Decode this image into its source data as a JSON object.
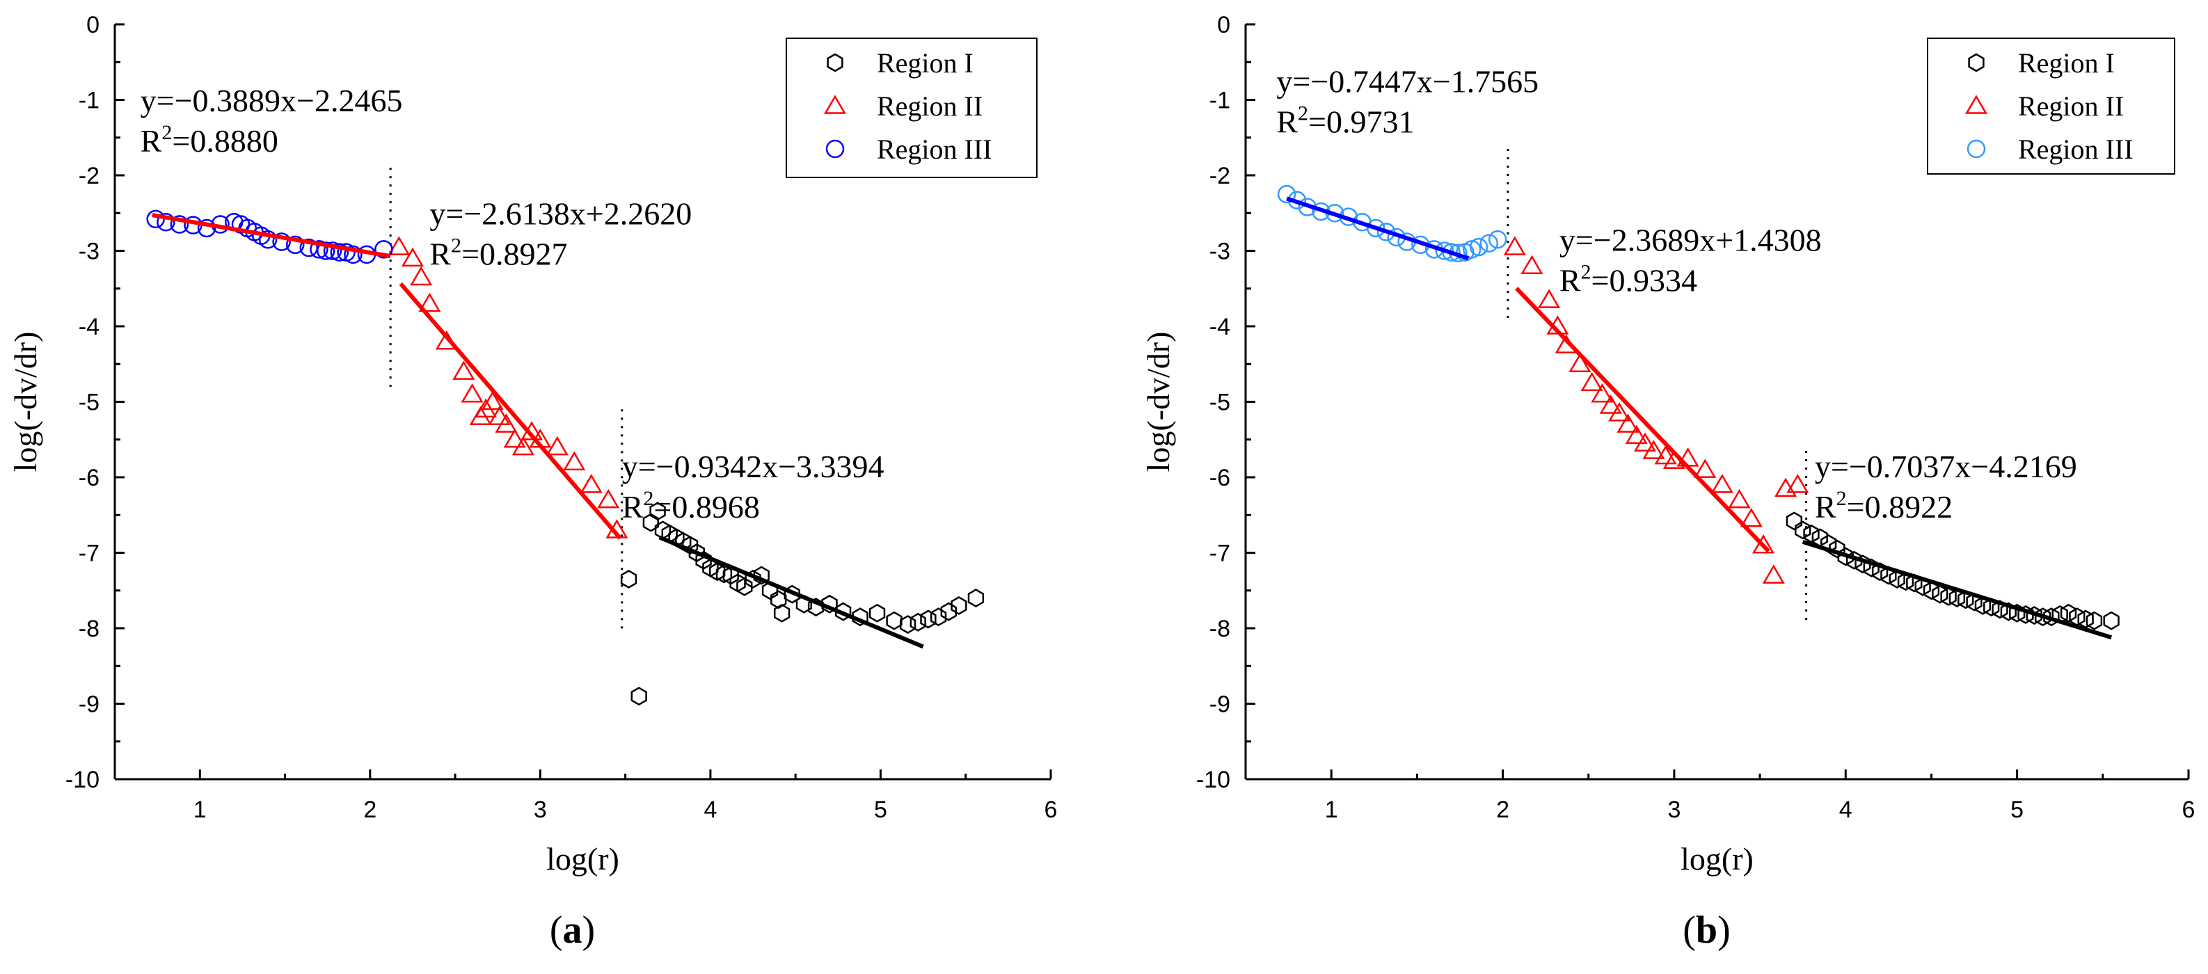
{
  "chart_data": [
    {
      "type": "scatter",
      "panel_label": "a",
      "xlabel": "log(r)",
      "ylabel": "log(-dv/dr)",
      "xlim": [
        0.5,
        6
      ],
      "ylim": [
        -10,
        0
      ],
      "xticks": [
        1,
        2,
        3,
        4,
        5,
        6
      ],
      "yticks": [
        0,
        -1,
        -2,
        -3,
        -4,
        -5,
        -6,
        -7,
        -8,
        -9,
        -10
      ],
      "grid": false,
      "legend_position": "top-right",
      "series": [
        {
          "name": "Region I",
          "marker": "hexagon",
          "color": "#000000",
          "x": [
            3.52,
            3.58,
            3.65,
            3.69,
            3.72,
            3.76,
            3.8,
            3.84,
            3.88,
            3.92,
            3.96,
            4.0,
            4.04,
            4.08,
            4.12,
            4.16,
            4.2,
            4.25,
            4.3,
            4.35,
            4.4,
            4.42,
            4.48,
            4.55,
            4.62,
            4.7,
            4.78,
            4.88,
            4.98,
            5.08,
            5.16,
            5.22,
            5.28,
            5.34,
            5.4,
            5.46,
            5.56
          ],
          "y": [
            -7.35,
            -8.9,
            -6.6,
            -6.45,
            -6.7,
            -6.75,
            -6.8,
            -6.85,
            -6.9,
            -7.0,
            -7.1,
            -7.2,
            -7.25,
            -7.28,
            -7.3,
            -7.4,
            -7.45,
            -7.35,
            -7.3,
            -7.5,
            -7.62,
            -7.8,
            -7.55,
            -7.68,
            -7.72,
            -7.68,
            -7.78,
            -7.85,
            -7.8,
            -7.9,
            -7.95,
            -7.92,
            -7.88,
            -7.85,
            -7.78,
            -7.7,
            -7.6
          ]
        },
        {
          "name": "Region II",
          "marker": "triangle",
          "color": "#ff0000",
          "x": [
            2.17,
            2.25,
            2.3,
            2.35,
            2.45,
            2.55,
            2.6,
            2.65,
            2.68,
            2.72,
            2.76,
            2.8,
            2.85,
            2.9,
            2.95,
            3.0,
            3.1,
            3.2,
            3.3,
            3.4,
            3.45
          ],
          "y": [
            -2.95,
            -3.1,
            -3.35,
            -3.7,
            -4.2,
            -4.6,
            -4.9,
            -5.2,
            -5.1,
            -5.0,
            -5.2,
            -5.3,
            -5.5,
            -5.6,
            -5.4,
            -5.5,
            -5.6,
            -5.8,
            -6.1,
            -6.3,
            -6.7
          ]
        },
        {
          "name": "Region III",
          "marker": "circle",
          "color": "#0000ff",
          "x": [
            0.74,
            0.8,
            0.88,
            0.96,
            1.04,
            1.12,
            1.2,
            1.24,
            1.28,
            1.32,
            1.36,
            1.4,
            1.48,
            1.56,
            1.64,
            1.7,
            1.74,
            1.78,
            1.82,
            1.86,
            1.9,
            1.98,
            2.08
          ],
          "y": [
            -2.58,
            -2.62,
            -2.65,
            -2.66,
            -2.7,
            -2.65,
            -2.62,
            -2.65,
            -2.7,
            -2.75,
            -2.8,
            -2.85,
            -2.88,
            -2.92,
            -2.96,
            -2.98,
            -3.0,
            -3.0,
            -3.02,
            -3.02,
            -3.05,
            -3.05,
            -2.98
          ]
        }
      ],
      "fit_lines": [
        {
          "series": "Region III",
          "color": "#ff0000",
          "x": [
            0.72,
            2.12
          ],
          "y": [
            -2.5265,
            -3.071
          ]
        },
        {
          "series": "Region II",
          "color": "#ff0000",
          "x": [
            2.18,
            3.47
          ],
          "y": [
            -3.4361,
            -6.808
          ]
        },
        {
          "series": "Region I",
          "color": "#000000",
          "x": [
            3.7,
            5.25
          ],
          "y": [
            -6.7959,
            -8.244
          ]
        }
      ],
      "dividers": [
        {
          "x": 2.12,
          "y": [
            -1.9,
            -4.85
          ]
        },
        {
          "x": 3.48,
          "y": [
            -5.1,
            -8.05
          ]
        }
      ],
      "annotations": [
        {
          "equation": "y=−0.3889x−2.2465",
          "r2": "0.8880",
          "x": 0.65,
          "y": -1.15
        },
        {
          "equation": "y=−2.6138x+2.2620",
          "r2": "0.8927",
          "x": 2.35,
          "y": -2.65
        },
        {
          "equation": "y=−0.9342x−3.3394",
          "r2": "0.8968",
          "x": 3.48,
          "y": -6.0
        }
      ]
    },
    {
      "type": "scatter",
      "panel_label": "b",
      "xlabel": "log(r)",
      "ylabel": "log(-dv/dr)",
      "xlim": [
        0.5,
        6
      ],
      "ylim": [
        -10,
        0
      ],
      "xticks": [
        1,
        2,
        3,
        4,
        5,
        6
      ],
      "yticks": [
        0,
        -1,
        -2,
        -3,
        -4,
        -5,
        -6,
        -7,
        -8,
        -9,
        -10
      ],
      "grid": false,
      "legend_position": "top-right",
      "series": [
        {
          "name": "Region I",
          "marker": "hexagon",
          "color": "#000000",
          "x": [
            3.7,
            3.75,
            3.8,
            3.85,
            3.9,
            3.95,
            4.0,
            4.05,
            4.1,
            4.15,
            4.2,
            4.25,
            4.3,
            4.35,
            4.4,
            4.45,
            4.5,
            4.55,
            4.6,
            4.65,
            4.7,
            4.75,
            4.8,
            4.85,
            4.9,
            4.95,
            5.0,
            5.05,
            5.1,
            5.15,
            5.2,
            5.25,
            5.3,
            5.35,
            5.4,
            5.45,
            5.55
          ],
          "y": [
            -6.58,
            -6.7,
            -6.75,
            -6.8,
            -6.88,
            -6.95,
            -7.05,
            -7.1,
            -7.15,
            -7.2,
            -7.25,
            -7.3,
            -7.35,
            -7.38,
            -7.4,
            -7.45,
            -7.5,
            -7.55,
            -7.58,
            -7.6,
            -7.62,
            -7.65,
            -7.7,
            -7.72,
            -7.75,
            -7.78,
            -7.8,
            -7.82,
            -7.83,
            -7.85,
            -7.85,
            -7.82,
            -7.8,
            -7.85,
            -7.88,
            -7.9,
            -7.9
          ]
        },
        {
          "name": "Region II",
          "marker": "triangle",
          "color": "#ff0000",
          "x": [
            2.07,
            2.17,
            2.27,
            2.32,
            2.37,
            2.45,
            2.52,
            2.58,
            2.63,
            2.68,
            2.73,
            2.78,
            2.83,
            2.88,
            2.95,
            3.0,
            3.08,
            3.18,
            3.28,
            3.38,
            3.45,
            3.52,
            3.58,
            3.65,
            3.72
          ],
          "y": [
            -2.95,
            -3.2,
            -3.65,
            -4.0,
            -4.25,
            -4.5,
            -4.75,
            -4.9,
            -5.05,
            -5.15,
            -5.3,
            -5.45,
            -5.55,
            -5.65,
            -5.72,
            -5.78,
            -5.75,
            -5.9,
            -6.1,
            -6.3,
            -6.55,
            -6.9,
            -7.3,
            -6.15,
            -6.1
          ]
        },
        {
          "name": "Region III",
          "marker": "circle",
          "color": "#3399ff",
          "x": [
            0.74,
            0.8,
            0.86,
            0.94,
            1.02,
            1.1,
            1.18,
            1.26,
            1.32,
            1.38,
            1.44,
            1.52,
            1.6,
            1.66,
            1.7,
            1.74,
            1.78,
            1.82,
            1.86,
            1.92,
            1.97
          ],
          "y": [
            -2.25,
            -2.33,
            -2.42,
            -2.48,
            -2.5,
            -2.55,
            -2.62,
            -2.7,
            -2.75,
            -2.82,
            -2.88,
            -2.92,
            -2.98,
            -3.0,
            -3.02,
            -3.03,
            -3.02,
            -2.98,
            -2.95,
            -2.9,
            -2.85
          ]
        }
      ],
      "fit_lines": [
        {
          "series": "Region III",
          "color": "#0000ff",
          "x": [
            0.74,
            1.8
          ],
          "y": [
            -2.3076,
            -3.101
          ]
        },
        {
          "series": "Region II",
          "color": "#ff0000",
          "x": [
            2.08,
            3.55
          ],
          "y": [
            -3.4965,
            -6.9788
          ]
        },
        {
          "series": "Region I",
          "color": "#000000",
          "x": [
            3.75,
            5.55
          ],
          "y": [
            -6.8558,
            -8.1225
          ]
        }
      ],
      "dividers": [
        {
          "x": 2.03,
          "y": [
            -1.65,
            -3.9
          ]
        },
        {
          "x": 3.77,
          "y": [
            -5.65,
            -7.9
          ]
        }
      ],
      "annotations": [
        {
          "equation": "y=−0.7447x−1.7565",
          "r2": "0.9731",
          "x": 0.68,
          "y": -0.9
        },
        {
          "equation": "y=−2.3689x+1.4308",
          "r2": "0.9334",
          "x": 2.33,
          "y": -3.0
        },
        {
          "equation": "y=−0.7037x−4.2169",
          "r2": "0.8922",
          "x": 3.82,
          "y": -6.0
        }
      ]
    }
  ]
}
